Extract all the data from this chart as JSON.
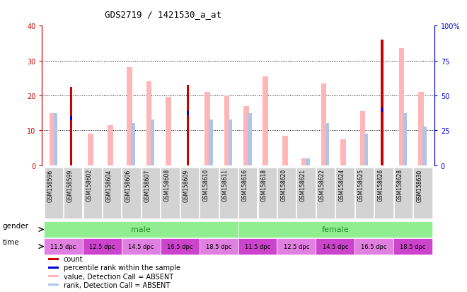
{
  "title": "GDS2719 / 1421530_a_at",
  "samples": [
    "GSM158596",
    "GSM158599",
    "GSM158602",
    "GSM158604",
    "GSM158606",
    "GSM158607",
    "GSM158608",
    "GSM158609",
    "GSM158610",
    "GSM158611",
    "GSM158616",
    "GSM158618",
    "GSM158620",
    "GSM158621",
    "GSM158622",
    "GSM158624",
    "GSM158625",
    "GSM158626",
    "GSM158628",
    "GSM158630"
  ],
  "count_values": [
    0,
    22.5,
    0,
    0,
    0,
    0,
    0,
    23,
    0,
    0,
    0,
    0,
    0,
    0,
    0,
    0,
    0,
    36,
    0,
    0
  ],
  "rank_values": [
    0,
    13.5,
    0,
    0,
    0,
    0,
    0,
    15,
    0,
    0,
    0,
    0,
    0,
    0,
    0,
    0,
    0,
    16,
    0,
    0
  ],
  "value_absent": [
    15,
    0,
    9,
    11.5,
    28,
    24,
    19.5,
    0,
    21,
    20,
    17,
    25.5,
    8.5,
    2,
    23.5,
    7.5,
    15.5,
    0,
    33.5,
    21
  ],
  "rank_absent": [
    15,
    0,
    0,
    0,
    12,
    13,
    0,
    0,
    13,
    13,
    15,
    0,
    0,
    2,
    12,
    0,
    9,
    0,
    15,
    11
  ],
  "ylim": [
    0,
    40
  ],
  "y2lim": [
    0,
    100
  ],
  "yticks": [
    0,
    10,
    20,
    30,
    40
  ],
  "y2ticks": [
    0,
    25,
    50,
    75,
    100
  ],
  "y2labels": [
    "0",
    "25",
    "50",
    "75",
    "100%"
  ],
  "time_labels": [
    "11.5 dpc",
    "12.5 dpc",
    "14.5 dpc",
    "16.5 dpc",
    "18.5 dpc",
    "11.5 dpc",
    "12.5 dpc",
    "14.5 dpc",
    "16.5 dpc",
    "18.5 dpc"
  ],
  "count_color": "#cc0000",
  "rank_color": "#0000cc",
  "value_absent_color": "#ffb6b6",
  "rank_absent_color": "#b0c4e8",
  "male_color": "#90ee90",
  "female_color": "#cc44cc",
  "time_color_light": "#ee82ee",
  "time_color_dark": "#cc44cc",
  "gender_text_color": "#228B22",
  "grid_color": "#000000",
  "bg_color": "#ffffff",
  "left_axis_color": "#cc0000",
  "right_axis_color": "#0000cc",
  "sample_bg_color": "#d3d3d3"
}
